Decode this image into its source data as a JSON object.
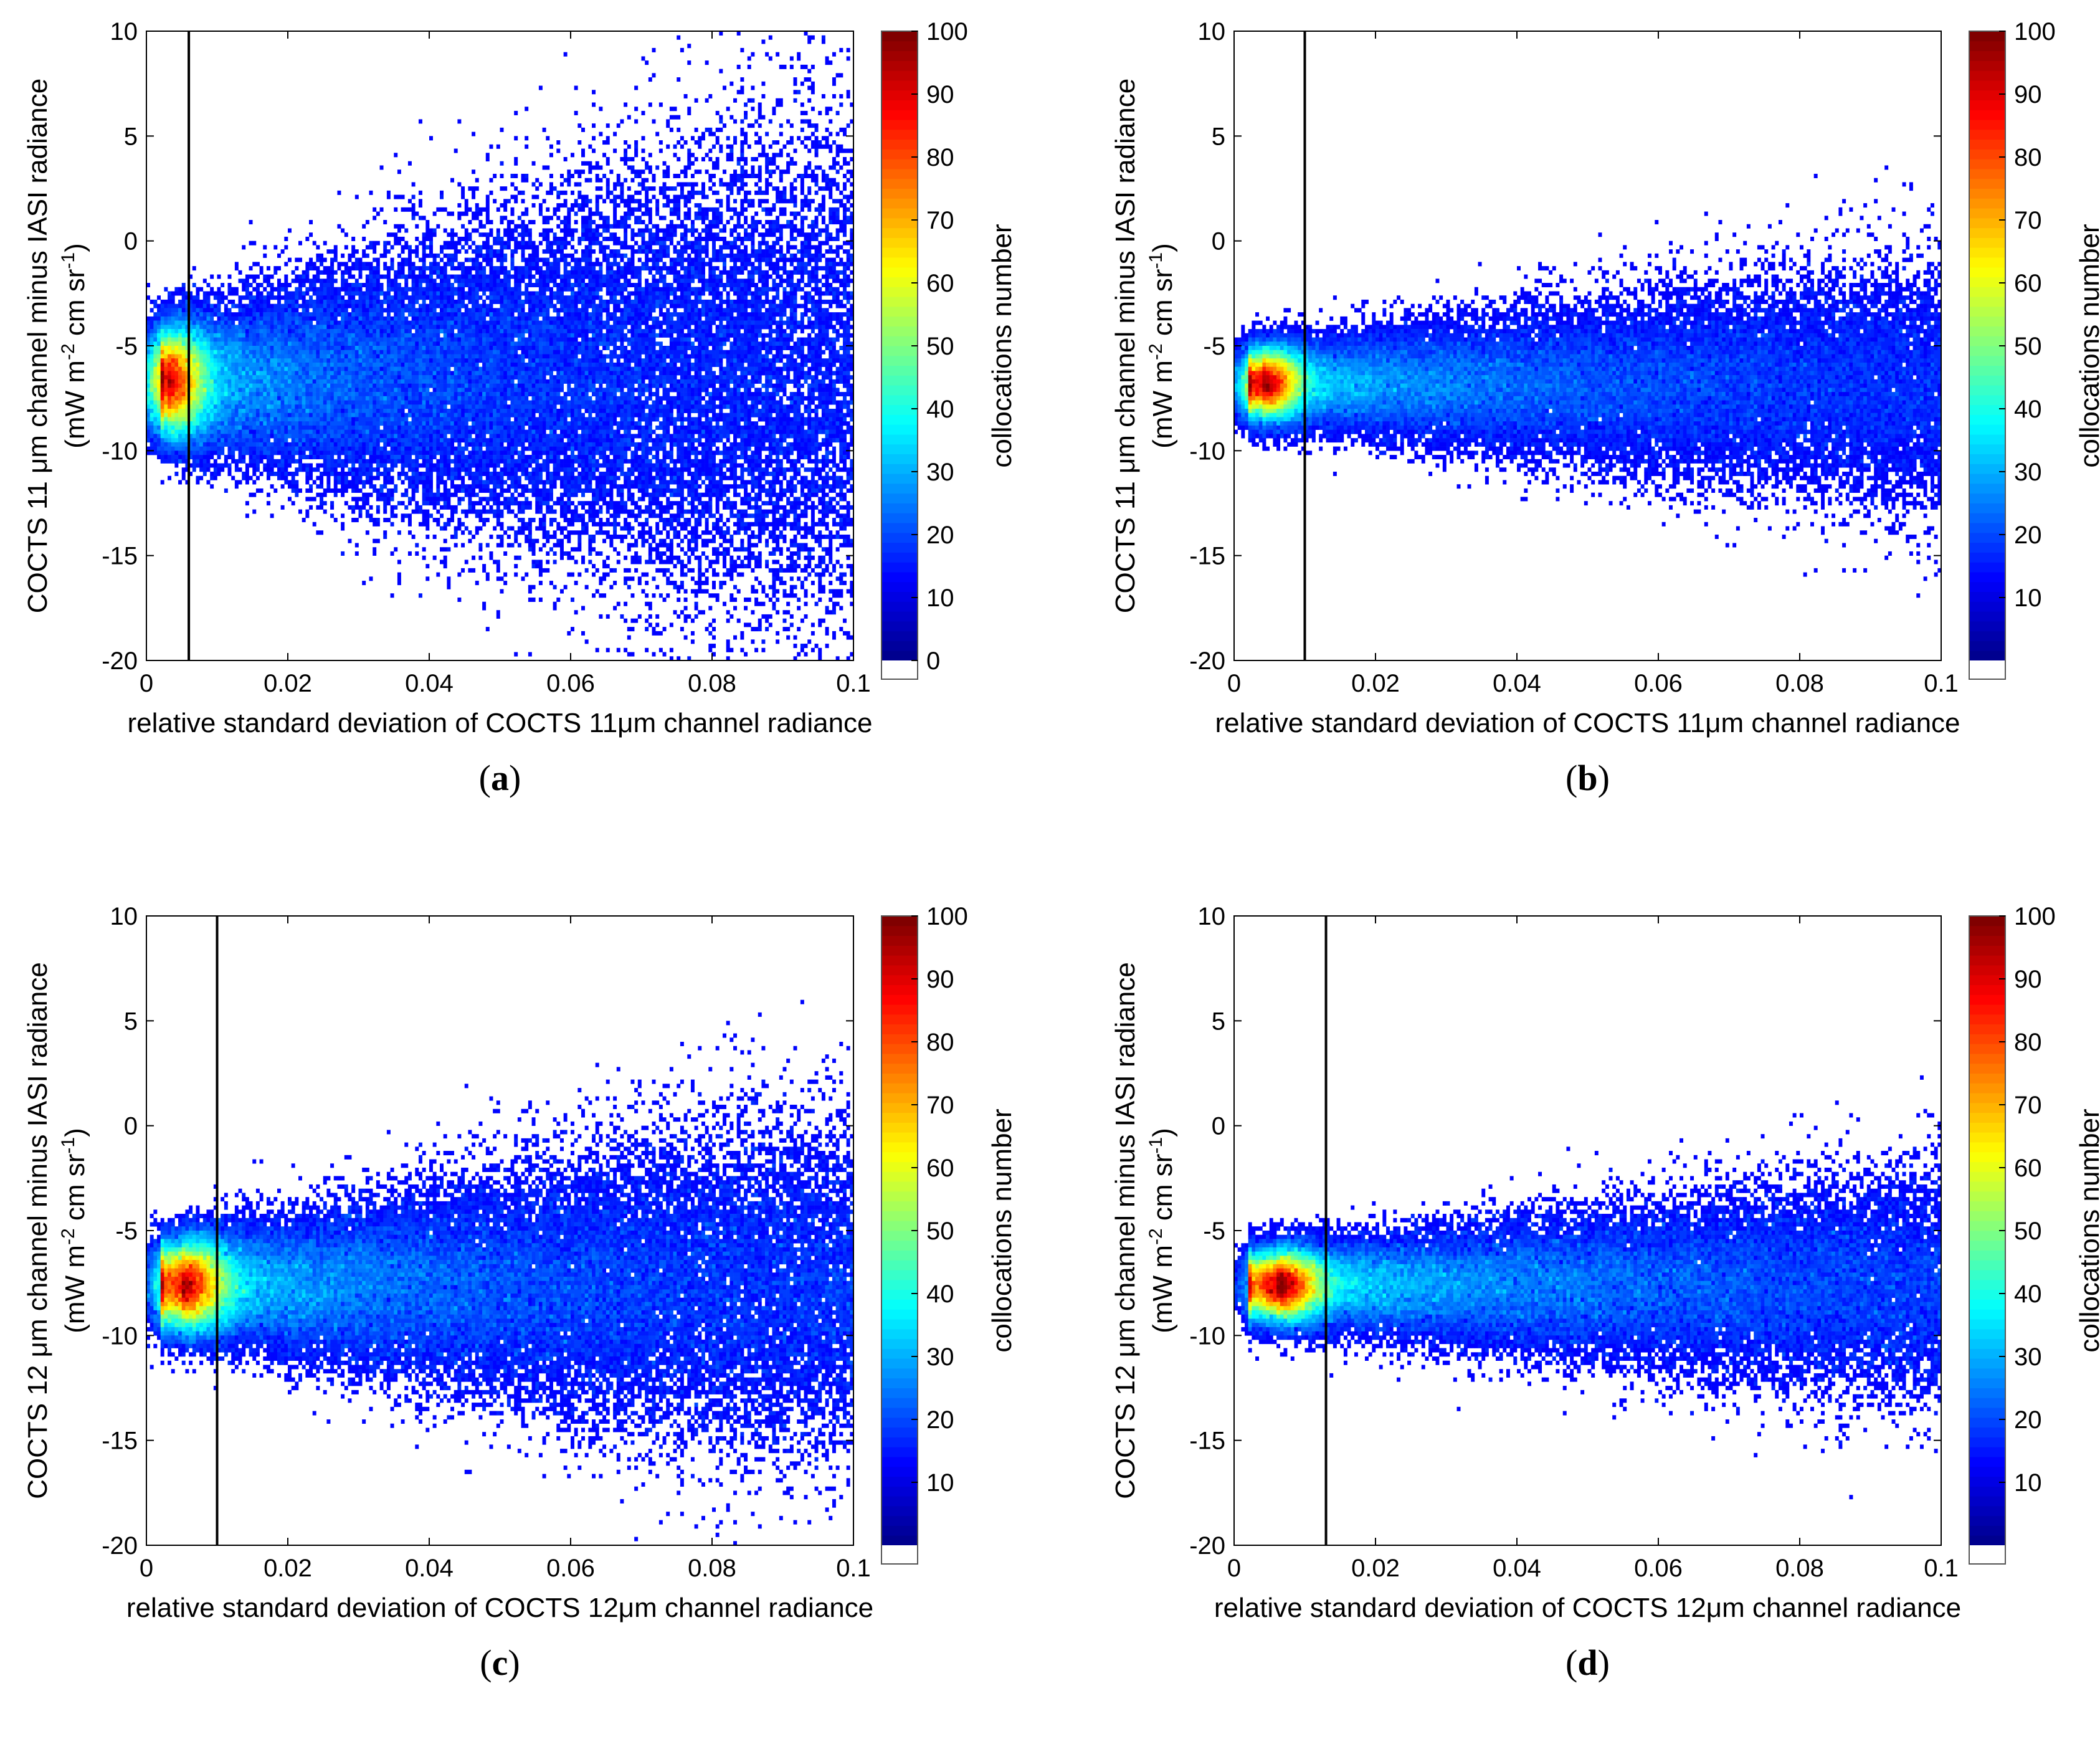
{
  "figure": {
    "colormap": [
      "#00008f",
      "#0000ff",
      "#0080ff",
      "#00ffff",
      "#80ff80",
      "#ffff00",
      "#ff8000",
      "#ff0000",
      "#800000"
    ],
    "colorbar_label": "collocations number",
    "chart_data": [
      {
        "id": "a",
        "caption": "a",
        "type": "heatmap",
        "xlabel": "relative standard deviation of COCTS 11μm channel radiance",
        "ylabel_line1": "COCTS 11 μm channel minus IASI  radiance",
        "ylabel_line2_parts": [
          "(mW m",
          "-2",
          " cm sr",
          "-1",
          ")"
        ],
        "xlim": [
          0,
          0.1
        ],
        "ylim": [
          -20,
          10
        ],
        "xticks": [
          0,
          0.02,
          0.04,
          0.06,
          0.08,
          0.1
        ],
        "xtick_labels": [
          "0",
          "0.02",
          "0.04",
          "0.06",
          "0.08",
          "0.1"
        ],
        "yticks": [
          -20,
          -15,
          -10,
          -5,
          0,
          5,
          10
        ],
        "ytick_labels": [
          "-20",
          "-15",
          "-10",
          "-5",
          "0",
          "5",
          "10"
        ],
        "threshold_x": 0.006,
        "colorbar_range": [
          0,
          100
        ],
        "colorbar_ticks": [
          0,
          10,
          20,
          30,
          40,
          50,
          60,
          70,
          80,
          90,
          100
        ],
        "colorbar_tick_labels": [
          "0",
          "10",
          "20",
          "30",
          "40",
          "50",
          "60",
          "70",
          "80",
          "90",
          "100"
        ],
        "density_peak": {
          "x": 0.003,
          "y": -6.7
        },
        "spread": {
          "sx": 0.003,
          "sy_core": 1.2,
          "sy_growth": 55,
          "sy_max": 6.5
        },
        "tail_mean_slope": 5
      },
      {
        "id": "b",
        "caption": "b",
        "type": "heatmap",
        "xlabel": "relative standard deviation of COCTS 11μm channel radiance",
        "ylabel_line1": "COCTS 11 μm channel minus IASI radiance",
        "ylabel_line2_parts": [
          "(mW m",
          "-2",
          " cm sr",
          "-1",
          ")"
        ],
        "xlim": [
          0,
          0.1
        ],
        "ylim": [
          -20,
          10
        ],
        "xticks": [
          0,
          0.02,
          0.04,
          0.06,
          0.08,
          0.1
        ],
        "xtick_labels": [
          "0",
          "0.02",
          "0.04",
          "0.06",
          "0.08",
          "0.1"
        ],
        "yticks": [
          -20,
          -15,
          -10,
          -5,
          0,
          5,
          10
        ],
        "ytick_labels": [
          "-20",
          "-15",
          "-10",
          "-5",
          "0",
          "5",
          "10"
        ],
        "threshold_x": 0.01,
        "colorbar_range": [
          0,
          100
        ],
        "colorbar_ticks": [
          10,
          20,
          30,
          40,
          50,
          60,
          70,
          80,
          90,
          100
        ],
        "colorbar_tick_labels": [
          "10",
          "20",
          "30",
          "40",
          "50",
          "60",
          "70",
          "80",
          "90",
          "100"
        ],
        "density_peak": {
          "x": 0.004,
          "y": -6.8
        },
        "spread": {
          "sx": 0.003,
          "sy_core": 0.8,
          "sy_growth": 22,
          "sy_max": 3.0
        },
        "tail_mean_slope": 0
      },
      {
        "id": "c",
        "caption": "c",
        "type": "heatmap",
        "xlabel": "relative standard deviation of COCTS 12μm channel radiance",
        "ylabel_line1": "COCTS 12 μm channel minus IASI radiance",
        "ylabel_line2_parts": [
          "(mW m",
          "-2",
          " cm sr",
          "-1",
          ")"
        ],
        "xlim": [
          0,
          0.1
        ],
        "ylim": [
          -20,
          10
        ],
        "xticks": [
          0,
          0.02,
          0.04,
          0.06,
          0.08,
          0.1
        ],
        "xtick_labels": [
          "0",
          "0.02",
          "0.04",
          "0.06",
          "0.08",
          "0.1"
        ],
        "yticks": [
          -20,
          -15,
          -10,
          -5,
          0,
          5,
          10
        ],
        "ytick_labels": [
          "-20",
          "-15",
          "-10",
          "-5",
          "0",
          "5",
          "10"
        ],
        "threshold_x": 0.01,
        "colorbar_range": [
          0,
          100
        ],
        "colorbar_ticks": [
          10,
          20,
          30,
          40,
          50,
          60,
          70,
          80,
          90,
          100
        ],
        "colorbar_tick_labels": [
          "10",
          "20",
          "30",
          "40",
          "50",
          "60",
          "70",
          "80",
          "90",
          "100"
        ],
        "density_peak": {
          "x": 0.005,
          "y": -7.6
        },
        "spread": {
          "sx": 0.0035,
          "sy_core": 1.0,
          "sy_growth": 35,
          "sy_max": 3.8
        },
        "tail_mean_slope": 0
      },
      {
        "id": "d",
        "caption": "d",
        "type": "heatmap",
        "xlabel": "relative standard deviation of COCTS 12μm channel radiance",
        "ylabel_line1": "COCTS 12 μm channel minus IASI radiance",
        "ylabel_line2_parts": [
          "(mW m",
          "-2",
          " cm sr",
          "-1",
          ")"
        ],
        "xlim": [
          0,
          0.1
        ],
        "ylim": [
          -20,
          10
        ],
        "xticks": [
          0,
          0.02,
          0.04,
          0.06,
          0.08,
          0.1
        ],
        "xtick_labels": [
          "0",
          "0.02",
          "0.04",
          "0.06",
          "0.08",
          "0.1"
        ],
        "yticks": [
          -20,
          -15,
          -10,
          -5,
          0,
          5,
          10
        ],
        "ytick_labels": [
          "-20",
          "-15",
          "-10",
          "-5",
          "0",
          "5",
          "10"
        ],
        "threshold_x": 0.013,
        "colorbar_range": [
          0,
          100
        ],
        "colorbar_ticks": [
          10,
          20,
          30,
          40,
          50,
          60,
          70,
          80,
          90,
          100
        ],
        "colorbar_tick_labels": [
          "10",
          "20",
          "30",
          "40",
          "50",
          "60",
          "70",
          "80",
          "90",
          "100"
        ],
        "density_peak": {
          "x": 0.006,
          "y": -7.6
        },
        "spread": {
          "sx": 0.0035,
          "sy_core": 0.8,
          "sy_growth": 20,
          "sy_max": 2.8
        },
        "tail_mean_slope": 0
      }
    ]
  }
}
